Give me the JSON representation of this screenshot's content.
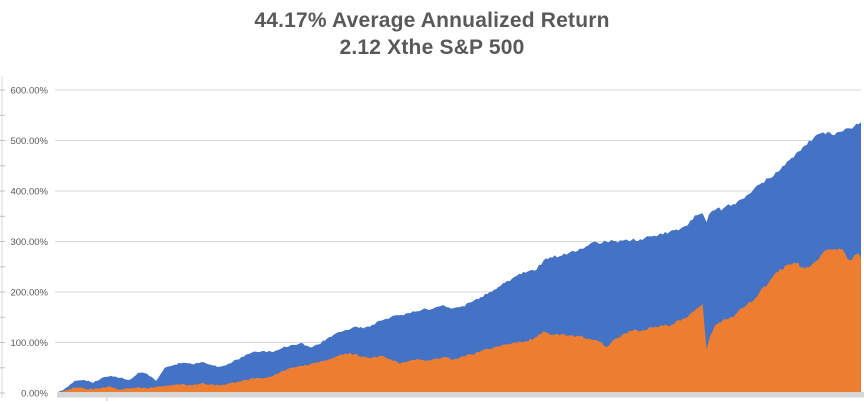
{
  "colors": {
    "series_blue": "#4472C4",
    "series_orange": "#ED7D31",
    "title_text": "#595959",
    "axis_text": "#595959",
    "gridline": "#D9D9D9",
    "axis_line": "#D9D9D9",
    "tick_mark": "#BFBFBF",
    "baseline_band": "#D6D6D6",
    "background": "#FFFFFF"
  },
  "chart_data": {
    "type": "area",
    "title": "44.17% Average Annualized Return",
    "subtitle": "2.12 Xthe S&P 500",
    "xlabel": "",
    "ylabel": "",
    "legend": "none",
    "grid": true,
    "x_axis": {
      "labels_visible": false
    },
    "y_axis": {
      "min": 0,
      "max": 600,
      "step": 100,
      "unit": "percent",
      "ticks": [
        {
          "v": 0,
          "label": "0.00%"
        },
        {
          "v": 100,
          "label": "100.00%"
        },
        {
          "v": 200,
          "label": "200.00%"
        },
        {
          "v": 300,
          "label": "300.00%"
        },
        {
          "v": 400,
          "label": "400.00%"
        },
        {
          "v": 500,
          "label": "500.00%"
        },
        {
          "v": 600,
          "label": "600.00%"
        }
      ]
    },
    "series": [
      {
        "id": "blue-series",
        "color": "#4472C4",
        "roughness": 4,
        "points": [
          [
            0,
            0
          ],
          [
            0.011,
            10
          ],
          [
            0.022,
            24
          ],
          [
            0.034,
            26
          ],
          [
            0.045,
            20
          ],
          [
            0.056,
            30
          ],
          [
            0.067,
            34
          ],
          [
            0.078,
            30
          ],
          [
            0.09,
            26
          ],
          [
            0.101,
            40
          ],
          [
            0.112,
            38
          ],
          [
            0.123,
            24
          ],
          [
            0.134,
            50
          ],
          [
            0.146,
            56
          ],
          [
            0.157,
            60
          ],
          [
            0.168,
            57
          ],
          [
            0.179,
            61
          ],
          [
            0.191,
            56
          ],
          [
            0.202,
            52
          ],
          [
            0.213,
            58
          ],
          [
            0.224,
            66
          ],
          [
            0.235,
            76
          ],
          [
            0.247,
            82
          ],
          [
            0.258,
            83
          ],
          [
            0.269,
            81
          ],
          [
            0.28,
            89
          ],
          [
            0.291,
            95
          ],
          [
            0.303,
            99
          ],
          [
            0.314,
            91
          ],
          [
            0.325,
            96
          ],
          [
            0.336,
            108
          ],
          [
            0.347,
            118
          ],
          [
            0.359,
            125
          ],
          [
            0.37,
            131
          ],
          [
            0.381,
            128
          ],
          [
            0.392,
            135
          ],
          [
            0.403,
            143
          ],
          [
            0.415,
            150
          ],
          [
            0.426,
            154
          ],
          [
            0.437,
            158
          ],
          [
            0.448,
            162
          ],
          [
            0.46,
            166
          ],
          [
            0.471,
            170
          ],
          [
            0.482,
            173
          ],
          [
            0.493,
            168
          ],
          [
            0.504,
            172
          ],
          [
            0.516,
            180
          ],
          [
            0.527,
            190
          ],
          [
            0.538,
            200
          ],
          [
            0.549,
            210
          ],
          [
            0.56,
            222
          ],
          [
            0.572,
            232
          ],
          [
            0.583,
            238
          ],
          [
            0.594,
            242
          ],
          [
            0.605,
            262
          ],
          [
            0.616,
            268
          ],
          [
            0.628,
            272
          ],
          [
            0.639,
            280
          ],
          [
            0.65,
            286
          ],
          [
            0.661,
            292
          ],
          [
            0.672,
            298
          ],
          [
            0.684,
            299
          ],
          [
            0.695,
            301
          ],
          [
            0.706,
            303
          ],
          [
            0.717,
            306
          ],
          [
            0.728,
            303
          ],
          [
            0.74,
            310
          ],
          [
            0.751,
            316
          ],
          [
            0.762,
            319
          ],
          [
            0.773,
            322
          ],
          [
            0.781,
            330
          ],
          [
            0.788,
            342
          ],
          [
            0.796,
            352
          ],
          [
            0.803,
            356
          ],
          [
            0.808,
            338
          ],
          [
            0.813,
            358
          ],
          [
            0.818,
            362
          ],
          [
            0.829,
            366
          ],
          [
            0.841,
            374
          ],
          [
            0.852,
            384
          ],
          [
            0.863,
            396
          ],
          [
            0.874,
            413
          ],
          [
            0.885,
            425
          ],
          [
            0.897,
            438
          ],
          [
            0.908,
            458
          ],
          [
            0.919,
            474
          ],
          [
            0.93,
            490
          ],
          [
            0.941,
            505
          ],
          [
            0.953,
            516
          ],
          [
            0.964,
            511
          ],
          [
            0.975,
            517
          ],
          [
            0.986,
            524
          ],
          [
            0.997,
            532
          ],
          [
            1,
            536
          ]
        ]
      },
      {
        "id": "orange-series",
        "color": "#ED7D31",
        "roughness": 4.5,
        "points": [
          [
            0,
            0
          ],
          [
            0.011,
            5
          ],
          [
            0.022,
            11
          ],
          [
            0.034,
            9
          ],
          [
            0.045,
            7
          ],
          [
            0.056,
            11
          ],
          [
            0.067,
            12
          ],
          [
            0.078,
            7
          ],
          [
            0.09,
            9
          ],
          [
            0.101,
            12
          ],
          [
            0.112,
            9
          ],
          [
            0.123,
            12
          ],
          [
            0.134,
            14
          ],
          [
            0.146,
            16
          ],
          [
            0.157,
            18
          ],
          [
            0.168,
            15
          ],
          [
            0.179,
            19
          ],
          [
            0.191,
            17
          ],
          [
            0.202,
            15
          ],
          [
            0.213,
            19
          ],
          [
            0.224,
            22
          ],
          [
            0.235,
            26
          ],
          [
            0.247,
            29
          ],
          [
            0.258,
            30
          ],
          [
            0.269,
            34
          ],
          [
            0.28,
            44
          ],
          [
            0.291,
            50
          ],
          [
            0.303,
            54
          ],
          [
            0.314,
            56
          ],
          [
            0.325,
            60
          ],
          [
            0.336,
            65
          ],
          [
            0.347,
            72
          ],
          [
            0.359,
            78
          ],
          [
            0.37,
            77
          ],
          [
            0.381,
            72
          ],
          [
            0.392,
            70
          ],
          [
            0.403,
            74
          ],
          [
            0.415,
            67
          ],
          [
            0.426,
            58
          ],
          [
            0.437,
            63
          ],
          [
            0.448,
            68
          ],
          [
            0.46,
            64
          ],
          [
            0.471,
            68
          ],
          [
            0.482,
            71
          ],
          [
            0.493,
            66
          ],
          [
            0.504,
            73
          ],
          [
            0.516,
            76
          ],
          [
            0.527,
            83
          ],
          [
            0.538,
            87
          ],
          [
            0.549,
            92
          ],
          [
            0.56,
            96
          ],
          [
            0.572,
            99
          ],
          [
            0.583,
            103
          ],
          [
            0.594,
            109
          ],
          [
            0.605,
            122
          ],
          [
            0.616,
            115
          ],
          [
            0.628,
            117
          ],
          [
            0.639,
            114
          ],
          [
            0.65,
            112
          ],
          [
            0.661,
            108
          ],
          [
            0.672,
            104
          ],
          [
            0.684,
            91
          ],
          [
            0.695,
            108
          ],
          [
            0.706,
            118
          ],
          [
            0.717,
            124
          ],
          [
            0.728,
            124
          ],
          [
            0.74,
            130
          ],
          [
            0.751,
            134
          ],
          [
            0.762,
            132
          ],
          [
            0.773,
            144
          ],
          [
            0.781,
            148
          ],
          [
            0.788,
            158
          ],
          [
            0.796,
            168
          ],
          [
            0.803,
            176
          ],
          [
            0.808,
            86
          ],
          [
            0.813,
            116
          ],
          [
            0.818,
            133
          ],
          [
            0.829,
            146
          ],
          [
            0.841,
            150
          ],
          [
            0.852,
            168
          ],
          [
            0.863,
            180
          ],
          [
            0.874,
            200
          ],
          [
            0.885,
            218
          ],
          [
            0.897,
            240
          ],
          [
            0.908,
            254
          ],
          [
            0.919,
            257
          ],
          [
            0.93,
            246
          ],
          [
            0.941,
            258
          ],
          [
            0.953,
            278
          ],
          [
            0.964,
            284
          ],
          [
            0.975,
            285
          ],
          [
            0.986,
            263
          ],
          [
            0.997,
            277
          ],
          [
            1,
            266
          ]
        ]
      }
    ]
  }
}
